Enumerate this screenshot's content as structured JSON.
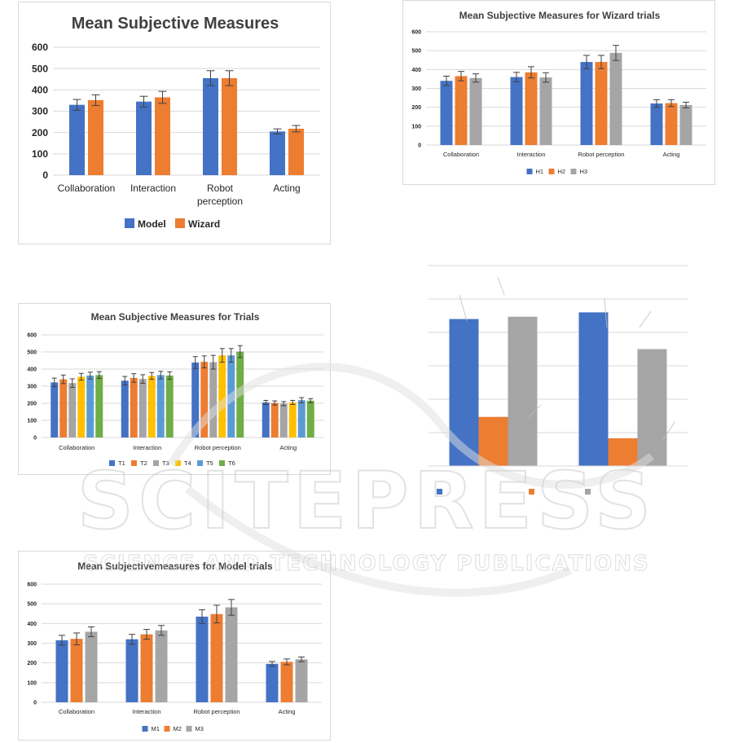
{
  "colors": {
    "blue": "#4472c4",
    "orange": "#ed7d31",
    "gray": "#a5a5a5",
    "yellow": "#ffc000",
    "lightblue": "#5b9bd5",
    "green": "#70ad47",
    "grid": "#d9d9d9",
    "error": "#404040",
    "watermark": "#e0e0e0"
  },
  "watermark": {
    "line1": "SCITEPRESS",
    "line2": "SCIENCE AND TECHNOLOGY PUBLICATIONS"
  },
  "chart_data": [
    {
      "id": "chart1",
      "type": "bar",
      "title": "Mean Subjective Measures",
      "categories": [
        "Collaboration",
        "Interaction",
        "Robot perception",
        "Acting"
      ],
      "category_lines": [
        [
          "Collaboration"
        ],
        [
          "Interaction"
        ],
        [
          "Robot",
          "perception"
        ],
        [
          "Acting"
        ]
      ],
      "ylim": [
        0,
        600
      ],
      "yticks": [
        0,
        100,
        200,
        300,
        400,
        500,
        600
      ],
      "grid": true,
      "legend": "bottom",
      "series": [
        {
          "name": "Model",
          "color": "blue",
          "values": [
            330,
            345,
            455,
            205
          ],
          "errors": [
            25,
            25,
            35,
            12
          ]
        },
        {
          "name": "Wizard",
          "color": "orange",
          "values": [
            352,
            365,
            455,
            218
          ],
          "errors": [
            25,
            28,
            35,
            15
          ]
        }
      ]
    },
    {
      "id": "chart2",
      "type": "bar",
      "title": "Mean Subjective Measures for Wizard trials",
      "categories": [
        "Collaboration",
        "Interaction",
        "Robot perception",
        "Acting"
      ],
      "category_lines": [
        [
          "Collaboration"
        ],
        [
          "Interaction"
        ],
        [
          "Robot perception"
        ],
        [
          "Acting"
        ]
      ],
      "ylim": [
        0,
        600
      ],
      "yticks": [
        0,
        100,
        200,
        300,
        400,
        500,
        600
      ],
      "grid": true,
      "legend": "bottom",
      "series": [
        {
          "name": "H1",
          "color": "blue",
          "values": [
            340,
            360,
            440,
            220
          ],
          "errors": [
            25,
            25,
            35,
            20
          ]
        },
        {
          "name": "H2",
          "color": "orange",
          "values": [
            365,
            385,
            440,
            222
          ],
          "errors": [
            25,
            30,
            35,
            18
          ]
        },
        {
          "name": "H3",
          "color": "gray",
          "values": [
            355,
            358,
            488,
            212
          ],
          "errors": [
            22,
            25,
            40,
            15
          ]
        }
      ]
    },
    {
      "id": "chart3",
      "type": "bar",
      "title": "Mean Subjective Measures for Trials",
      "categories": [
        "Collaboration",
        "Interaction",
        "Robot perception",
        "Acting"
      ],
      "category_lines": [
        [
          "Collaboration"
        ],
        [
          "Interaction"
        ],
        [
          "Robot perception"
        ],
        [
          "Acting"
        ]
      ],
      "ylim": [
        0,
        600
      ],
      "yticks": [
        0,
        100,
        200,
        300,
        400,
        500,
        600
      ],
      "grid": true,
      "legend": "bottom",
      "series": [
        {
          "name": "T1",
          "color": "blue",
          "values": [
            322,
            332,
            438,
            205
          ],
          "errors": [
            25,
            25,
            35,
            12
          ]
        },
        {
          "name": "T2",
          "color": "orange",
          "values": [
            340,
            348,
            442,
            202
          ],
          "errors": [
            25,
            25,
            35,
            12
          ]
        },
        {
          "name": "T3",
          "color": "gray",
          "values": [
            318,
            342,
            440,
            198
          ],
          "errors": [
            25,
            25,
            40,
            12
          ]
        },
        {
          "name": "T4",
          "color": "yellow",
          "values": [
            355,
            360,
            480,
            205
          ],
          "errors": [
            20,
            20,
            40,
            12
          ]
        },
        {
          "name": "T5",
          "color": "lightblue",
          "values": [
            362,
            365,
            480,
            218
          ],
          "errors": [
            20,
            22,
            40,
            15
          ]
        },
        {
          "name": "T6",
          "color": "green",
          "values": [
            365,
            362,
            502,
            215
          ],
          "errors": [
            20,
            22,
            35,
            12
          ]
        }
      ]
    },
    {
      "id": "chart4",
      "type": "bar",
      "title": "",
      "categories": [
        "",
        ""
      ],
      "category_lines": [
        [
          ""
        ],
        [
          ""
        ]
      ],
      "ylim": [
        0,
        600
      ],
      "yticks": [],
      "grid": true,
      "legend": "bottom",
      "series": [
        {
          "name": "",
          "color": "blue",
          "values": [
            440,
            460
          ],
          "errors": [
            0,
            0
          ]
        },
        {
          "name": "",
          "color": "orange",
          "values": [
            147,
            83
          ],
          "errors": [
            0,
            0
          ]
        },
        {
          "name": "",
          "color": "gray",
          "values": [
            447,
            350
          ],
          "errors": [
            0,
            0
          ]
        }
      ]
    },
    {
      "id": "chart5",
      "type": "bar",
      "title": "Mean Subjectivemeasures for Model trials",
      "categories": [
        "Collaboration",
        "Interaction",
        "Robot perception",
        "Acting"
      ],
      "category_lines": [
        [
          "Collaboration"
        ],
        [
          "Interaction"
        ],
        [
          "Robot perception"
        ],
        [
          "Acting"
        ]
      ],
      "ylim": [
        0,
        600
      ],
      "yticks": [
        0,
        100,
        200,
        300,
        400,
        500,
        600
      ],
      "grid": true,
      "legend": "bottom",
      "series": [
        {
          "name": "M1",
          "color": "blue",
          "values": [
            315,
            320,
            435,
            195
          ],
          "errors": [
            25,
            25,
            35,
            12
          ]
        },
        {
          "name": "M2",
          "color": "orange",
          "values": [
            322,
            345,
            448,
            205
          ],
          "errors": [
            30,
            25,
            45,
            15
          ]
        },
        {
          "name": "M3",
          "color": "gray",
          "values": [
            358,
            365,
            482,
            218
          ],
          "errors": [
            25,
            25,
            40,
            12
          ]
        }
      ]
    }
  ]
}
